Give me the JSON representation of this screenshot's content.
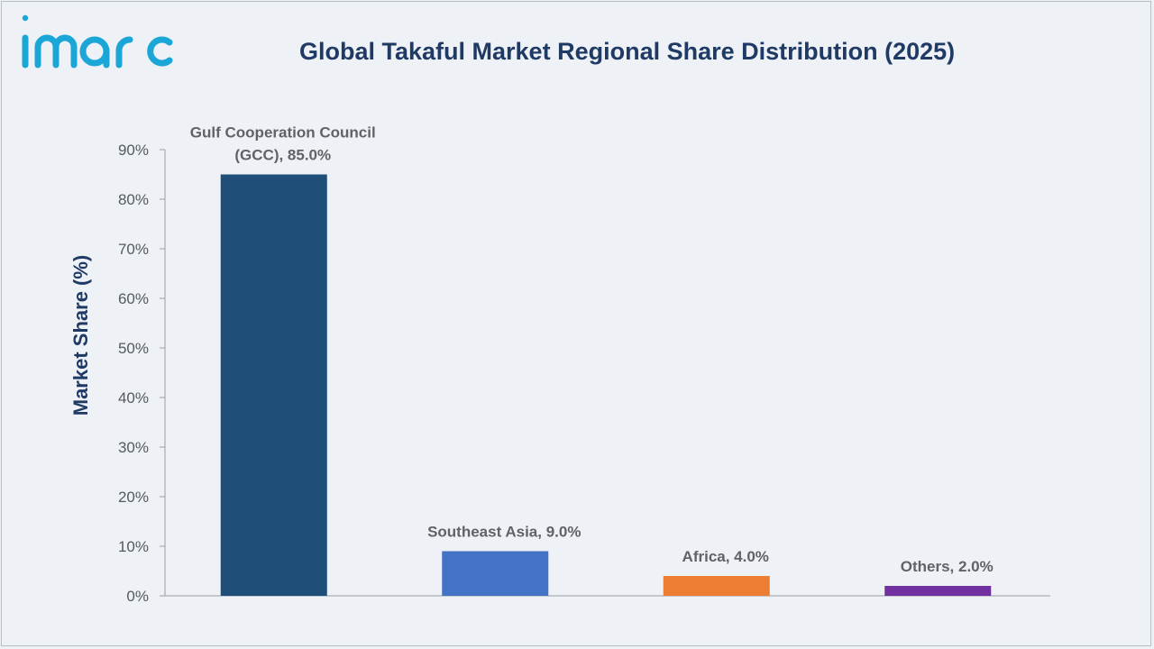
{
  "brand": {
    "name": "imarc",
    "color": "#1aa6d6"
  },
  "chart_data": {
    "type": "bar",
    "title": "Global Takaful Market Regional Share Distribution (2025)",
    "ylabel": "Market Share (%)",
    "xlabel": "",
    "ylim": [
      0,
      90
    ],
    "yticks": [
      0,
      10,
      20,
      30,
      40,
      50,
      60,
      70,
      80,
      90
    ],
    "ytick_format": "%",
    "grid": false,
    "categories": [
      "Gulf Cooperation Council (GCC)",
      "Southeast Asia",
      "Africa",
      "Others"
    ],
    "values": [
      85.0,
      9.0,
      4.0,
      2.0
    ],
    "data_labels": [
      [
        "Gulf Cooperation Council",
        "(GCC), 85.0%"
      ],
      [
        "Southeast Asia, 9.0%"
      ],
      [
        "Africa, 4.0%"
      ],
      [
        "Others, 2.0%"
      ]
    ],
    "colors": [
      "#1f4e79",
      "#4472c4",
      "#ed7d31",
      "#7030a0"
    ]
  }
}
